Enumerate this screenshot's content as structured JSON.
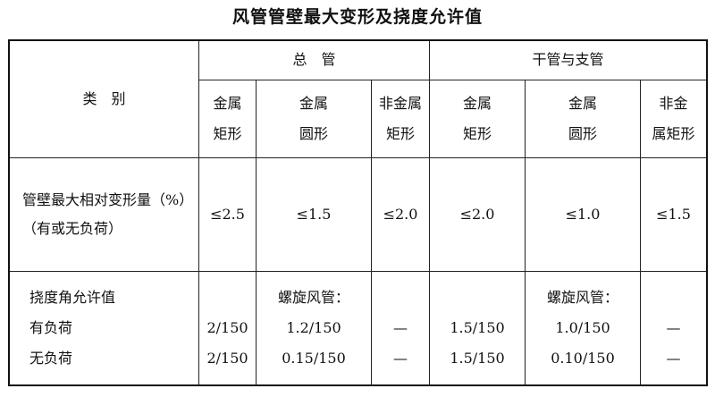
{
  "title": "风管管壁最大变形及挠度允许值",
  "header": {
    "category": "类　别",
    "group1": "总　管",
    "group2": "干管与支管",
    "sub": [
      "金属\n矩形",
      "金属\n圆形",
      "非金属\n矩形",
      "金属\n矩形",
      "金属\n圆形",
      "非金\n属矩形"
    ]
  },
  "rows": {
    "deformation": {
      "label": "管壁最大相对变形量（%）（有或无负荷）",
      "values": [
        "≤2.5",
        "≤1.5",
        "≤2.0",
        "≤2.0",
        "≤1.0",
        "≤1.5"
      ]
    },
    "deflection": {
      "label": "挠度角允许值",
      "loaded": "有负荷",
      "unloaded": "无负荷",
      "spiral": "螺旋风管：",
      "loaded_values": [
        "2/150",
        "1.2/150",
        "—",
        "1.5/150",
        "1.0/150",
        "—"
      ],
      "unloaded_values": [
        "2/150",
        "0.15/150",
        "—",
        "1.5/150",
        "0.10/150",
        "—"
      ]
    }
  }
}
